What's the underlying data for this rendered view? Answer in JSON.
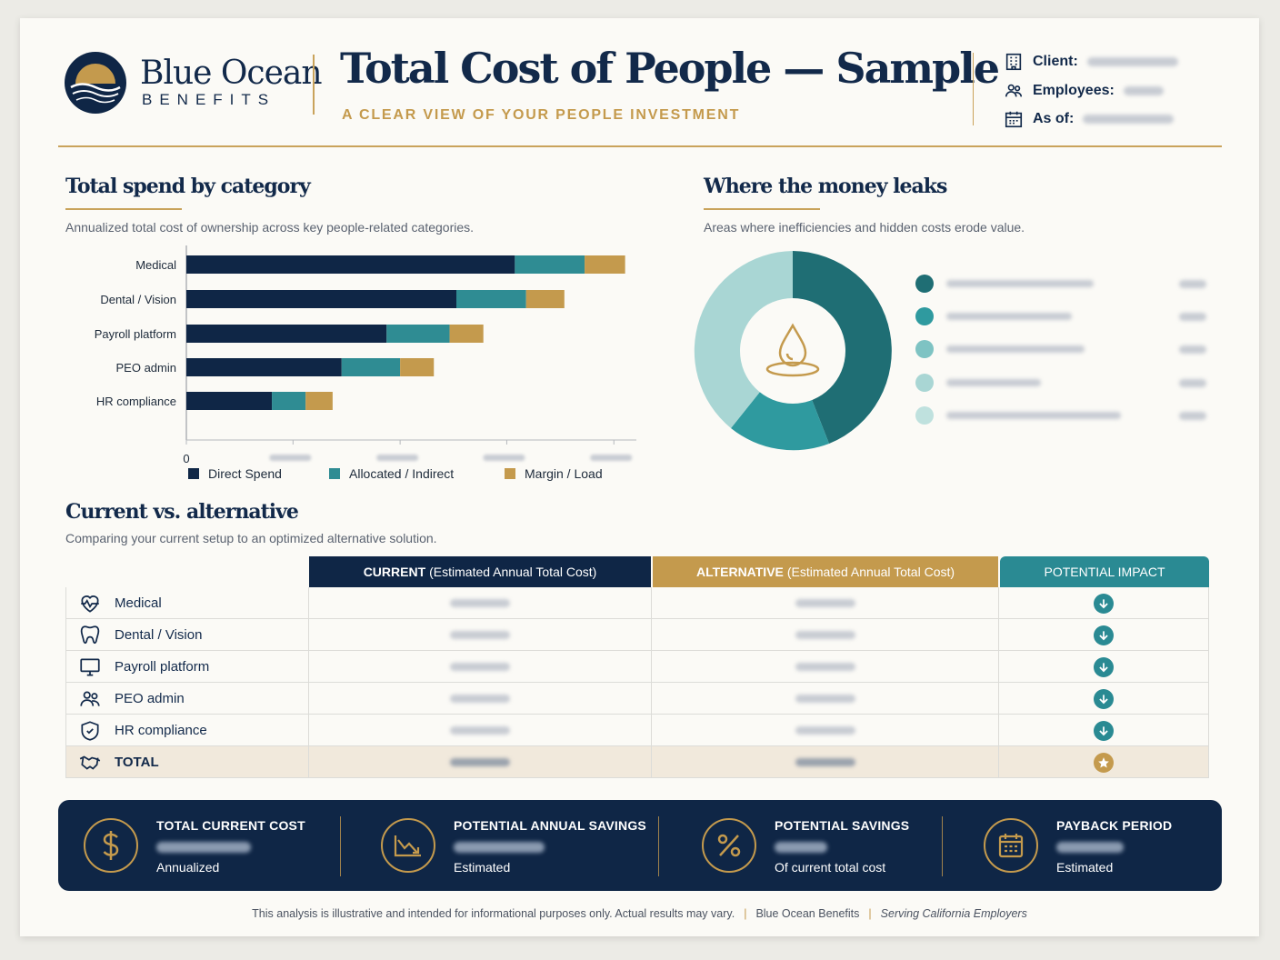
{
  "brand": {
    "name": "Blue Ocean",
    "sub": "BENEFITS"
  },
  "header": {
    "title": "Total Cost of People — Sample",
    "tagline": "A CLEAR VIEW OF YOUR PEOPLE INVESTMENT",
    "meta": [
      {
        "label": "Client:",
        "icon": "building-icon"
      },
      {
        "label": "Employees:",
        "icon": "people-icon"
      },
      {
        "label": "As of:",
        "icon": "calendar-icon"
      }
    ]
  },
  "spend": {
    "title": "Total spend by category",
    "subtitle": "Annualized total cost of ownership across key people-related categories."
  },
  "leaks": {
    "title": "Where the money leaks",
    "subtitle": "Areas where inefficiencies and hidden costs erode value.",
    "center_icon": "droplet-icon",
    "colors": [
      "#1f6e74",
      "#2f9a9f",
      "#7ec3c3",
      "#a9d6d4",
      "#bfe1de"
    ]
  },
  "chart_data": {
    "type": "bar",
    "orientation": "horizontal",
    "stacked": true,
    "categories": [
      "Medical",
      "Dental / Vision",
      "Payroll platform",
      "PEO admin",
      "HR compliance"
    ],
    "series": [
      {
        "name": "Direct Spend",
        "color": "#0f2646",
        "values": [
          73,
          60,
          44.5,
          34.5,
          19
        ]
      },
      {
        "name": "Allocated / Indirect",
        "color": "#2f8c93",
        "values": [
          15.5,
          15.5,
          14,
          13,
          7.5
        ]
      },
      {
        "name": "Margin / Load",
        "color": "#c49a4d",
        "values": [
          9,
          8.5,
          7.5,
          7.5,
          6
        ]
      }
    ],
    "xlim": [
      0,
      100
    ],
    "x_tick_labels": [
      "0"
    ],
    "grid": false,
    "legend_placement": "bottom"
  },
  "comparison": {
    "title": "Current vs. alternative",
    "subtitle": "Comparing your current setup to an optimized alternative solution.",
    "headers": {
      "current_bold": "CURRENT",
      "current_rest": "(Estimated Annual Total Cost)",
      "alt_bold": "ALTERNATIVE",
      "alt_rest": "(Estimated Annual Total Cost)",
      "impact": "POTENTIAL IMPACT"
    },
    "rows": [
      {
        "label": "Medical",
        "icon": "heart-pulse-icon"
      },
      {
        "label": "Dental / Vision",
        "icon": "tooth-icon"
      },
      {
        "label": "Payroll platform",
        "icon": "monitor-icon"
      },
      {
        "label": "PEO admin",
        "icon": "people-icon"
      },
      {
        "label": "HR compliance",
        "icon": "shield-icon"
      },
      {
        "label": "TOTAL",
        "icon": "handshake-icon"
      }
    ]
  },
  "kpis": [
    {
      "title": "TOTAL CURRENT COST",
      "note": "Annualized",
      "icon": "dollar-icon"
    },
    {
      "title": "POTENTIAL ANNUAL SAVINGS",
      "note": "Estimated",
      "icon": "trend-down-icon"
    },
    {
      "title": "POTENTIAL SAVINGS",
      "note": "Of current total cost",
      "icon": "percent-icon"
    },
    {
      "title": "PAYBACK PERIOD",
      "note": "Estimated",
      "icon": "calendar-icon"
    }
  ],
  "footer": {
    "disclaimer": "This analysis is illustrative and intended for informational purposes only. Actual results may vary.",
    "brand": "Blue Ocean Benefits",
    "tagline": "Serving California Employers"
  }
}
